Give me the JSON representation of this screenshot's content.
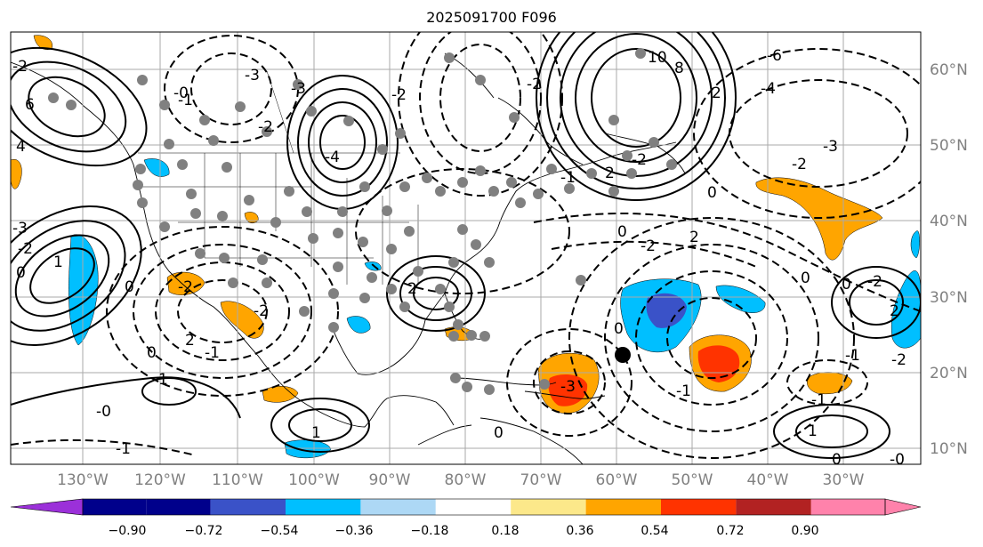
{
  "title": "2025091700 F096",
  "lon_labels": [
    "130°W",
    "120°W",
    "110°W",
    "100°W",
    "90°W",
    "80°W",
    "70°W",
    "60°W",
    "50°W",
    "40°W",
    "30°W"
  ],
  "lat_labels": [
    "60°N",
    "50°N",
    "40°N",
    "30°N",
    "20°N",
    "10°N"
  ],
  "colorbar": {
    "ticks": [
      "−0.90",
      "−0.72",
      "−0.54",
      "−0.36",
      "−0.18",
      "0.18",
      "0.36",
      "0.54",
      "0.72",
      "0.90"
    ],
    "colors": [
      "#9b30d9",
      "#00008b",
      "#3a52c8",
      "#00bfff",
      "#add8f5",
      "#ffffff",
      "#fce88a",
      "#ffa500",
      "#ff3300",
      "#b22222",
      "#ff82ab"
    ]
  },
  "contour_labels": [
    "-2",
    "6",
    "4",
    "-1",
    "-3",
    "-0",
    "-2",
    "-3",
    "-4",
    "-2",
    "10",
    "8",
    "-6",
    "-4",
    "-3",
    "2",
    "-2",
    "-2",
    "0",
    "-2",
    "-1",
    "2",
    "-2",
    "0",
    "0",
    "2",
    "-3",
    "0",
    "1",
    "-2",
    "0",
    "0",
    "-1",
    "1",
    "-1",
    "-0",
    "2",
    "1",
    "2",
    "0",
    "-2",
    "-2",
    "-3",
    "2",
    "-2",
    "-1",
    "0",
    "-1",
    "-1",
    "1",
    "0",
    "0",
    "-0",
    "-2"
  ],
  "annotations": {
    "marker": "black-dot"
  }
}
